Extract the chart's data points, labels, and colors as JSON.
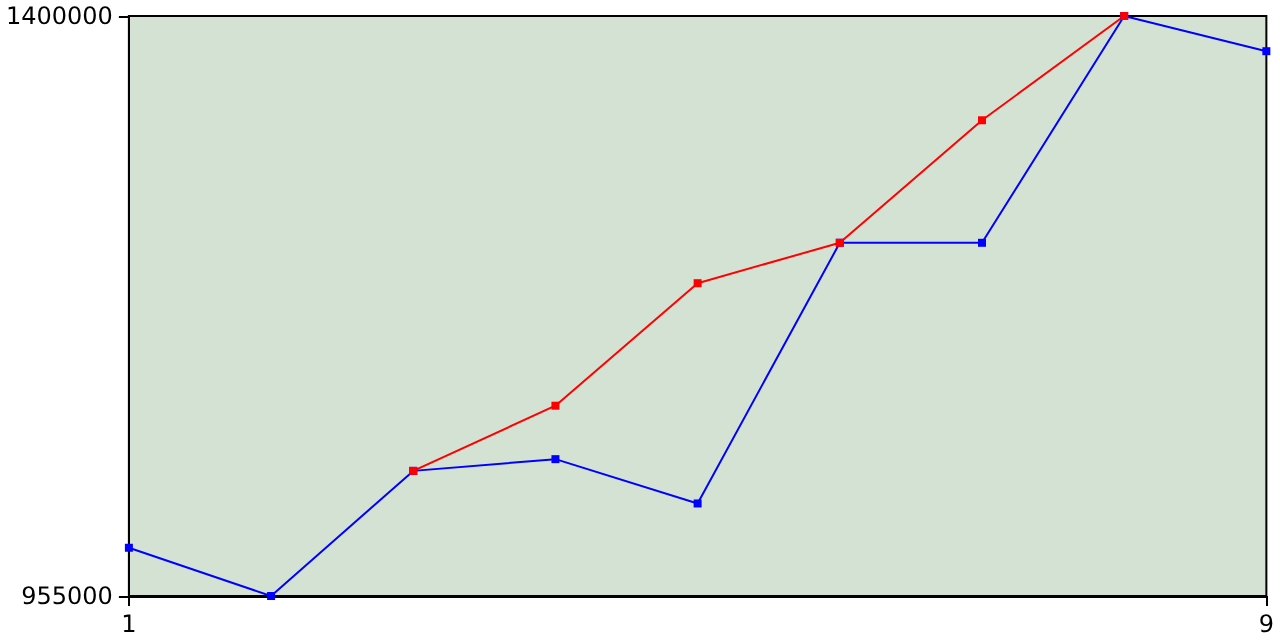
{
  "chart_data": {
    "type": "line",
    "x": [
      1,
      2,
      3,
      4,
      5,
      6,
      7,
      8,
      9
    ],
    "series": [
      {
        "color": "#ff0000",
        "values": [
          null,
          null,
          1051000,
          1101000,
          1195000,
          1226000,
          1320000,
          1400000,
          null
        ]
      },
      {
        "color": "#0000ff",
        "values": [
          992000,
          955000,
          1051000,
          1060000,
          1026000,
          1226000,
          1226000,
          1400000,
          1373000
        ]
      }
    ],
    "xlim": [
      1,
      9
    ],
    "xticks": [
      1,
      9
    ],
    "ylim": [
      955000,
      1400000
    ],
    "yticks": [
      955000,
      1400000
    ],
    "grid": false,
    "marker": "square",
    "line_style": "solid"
  }
}
